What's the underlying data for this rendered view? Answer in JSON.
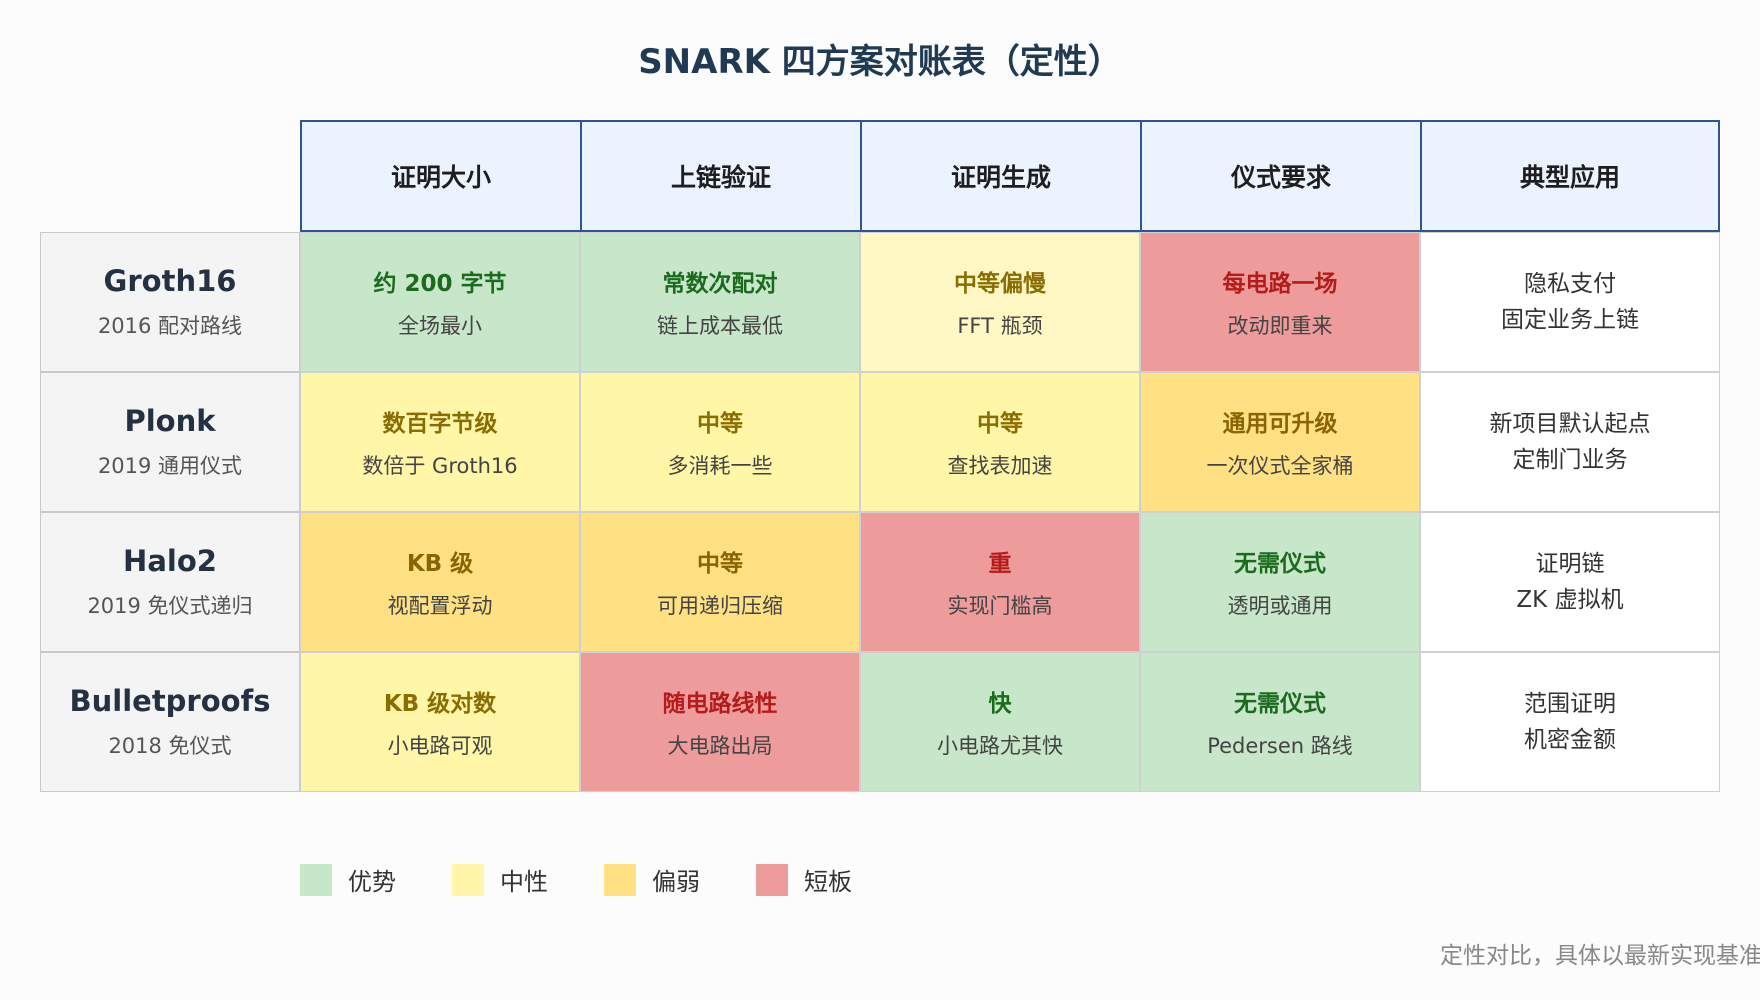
{
  "title": "SNARK 四方案对账表（定性）",
  "columns": [
    "证明大小",
    "上链验证",
    "证明生成",
    "仪式要求",
    "典型应用"
  ],
  "rows": [
    {
      "name": "Groth16",
      "sub": "2016 配对路线",
      "cells": [
        {
          "main": "约 200 字节",
          "sub": "全场最小",
          "level": "adv"
        },
        {
          "main": "常数次配对",
          "sub": "链上成本最低",
          "level": "adv"
        },
        {
          "main": "中等偏慢",
          "sub": "FFT 瓶颈",
          "level": "neu"
        },
        {
          "main": "每电路一场",
          "sub": "改动即重来",
          "level": "bad"
        }
      ],
      "app": [
        "隐私支付",
        "固定业务上链"
      ]
    },
    {
      "name": "Plonk",
      "sub": "2019 通用仪式",
      "cells": [
        {
          "main": "数百字节级",
          "sub": "数倍于 Groth16",
          "level": "neu"
        },
        {
          "main": "中等",
          "sub": "多消耗一些",
          "level": "neu"
        },
        {
          "main": "中等",
          "sub": "查找表加速",
          "level": "neu"
        },
        {
          "main": "通用可升级",
          "sub": "一次仪式全家桶",
          "level": "weak"
        }
      ],
      "app": [
        "新项目默认起点",
        "定制门业务"
      ]
    },
    {
      "name": "Halo2",
      "sub": "2019 免仪式递归",
      "cells": [
        {
          "main": "KB 级",
          "sub": "视配置浮动",
          "level": "weak"
        },
        {
          "main": "中等",
          "sub": "可用递归压缩",
          "level": "weak"
        },
        {
          "main": "重",
          "sub": "实现门槛高",
          "level": "bad"
        },
        {
          "main": "无需仪式",
          "sub": "透明或通用",
          "level": "adv"
        }
      ],
      "app": [
        "证明链",
        "ZK 虚拟机"
      ]
    },
    {
      "name": "Bulletproofs",
      "sub": "2018 免仪式",
      "cells": [
        {
          "main": "KB 级对数",
          "sub": "小电路可观",
          "level": "neu"
        },
        {
          "main": "随电路线性",
          "sub": "大电路出局",
          "level": "bad"
        },
        {
          "main": "快",
          "sub": "小电路尤其快",
          "level": "adv"
        },
        {
          "main": "无需仪式",
          "sub": "Pedersen 路线",
          "level": "adv"
        }
      ],
      "app": [
        "范围证明",
        "机密金额"
      ]
    }
  ],
  "legend": [
    {
      "label": "优势",
      "color": "#c8e6c9"
    },
    {
      "label": "中性",
      "color": "#fff6a8"
    },
    {
      "label": "偏弱",
      "color": "#ffe083"
    },
    {
      "label": "短板",
      "color": "#ee9b9b"
    }
  ],
  "footnote": "定性对比，具体以最新实现基准"
}
